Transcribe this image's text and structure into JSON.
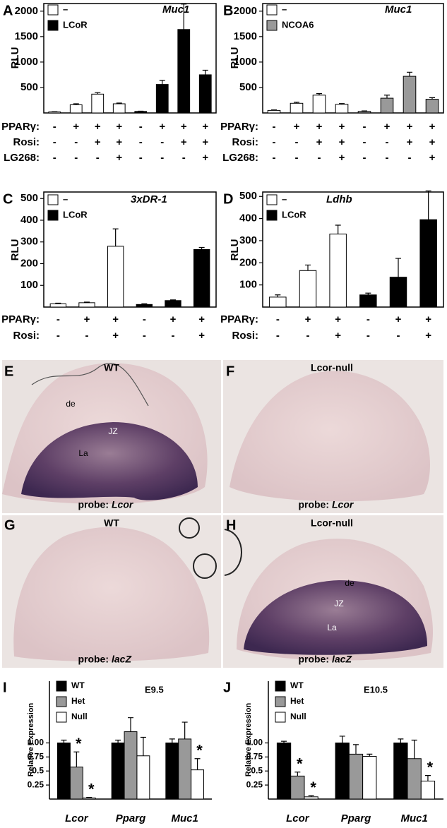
{
  "chart_data": [
    {
      "type": "bar",
      "panel": "A",
      "ylabel": "RLU",
      "annotation": "Muc1",
      "ylim": [
        0,
        2150
      ],
      "yticks": [
        500,
        1000,
        1500,
        2000
      ],
      "series": [
        {
          "name": "–",
          "color": "#ffffff",
          "values": [
            20,
            160,
            370,
            180,
            null,
            null,
            null,
            null
          ],
          "errors": [
            5,
            20,
            30,
            15,
            null,
            null,
            null,
            null
          ]
        },
        {
          "name": "LCoR",
          "color": "#000000",
          "values": [
            null,
            null,
            null,
            null,
            30,
            560,
            1640,
            750
          ],
          "errors": [
            null,
            null,
            null,
            null,
            5,
            80,
            500,
            90
          ]
        }
      ],
      "conditions": [
        {
          "label": "PPARγ:",
          "values": [
            "-",
            "+",
            "+",
            "+",
            "-",
            "+",
            "+",
            "+"
          ]
        },
        {
          "label": "Rosi:",
          "values": [
            "-",
            "-",
            "+",
            "+",
            "-",
            "-",
            "+",
            "+"
          ]
        },
        {
          "label": "LG268:",
          "values": [
            "-",
            "-",
            "-",
            "+",
            "-",
            "-",
            "-",
            "+"
          ]
        }
      ]
    },
    {
      "type": "bar",
      "panel": "B",
      "ylabel": "RLU",
      "annotation": "Muc1",
      "ylim": [
        0,
        2150
      ],
      "yticks": [
        500,
        1000,
        1500,
        2000
      ],
      "series": [
        {
          "name": "–",
          "color": "#ffffff",
          "values": [
            50,
            190,
            350,
            170,
            null,
            null,
            null,
            null
          ],
          "errors": [
            10,
            20,
            30,
            15,
            null,
            null,
            null,
            null
          ]
        },
        {
          "name": "NCOA6",
          "color": "#999999",
          "values": [
            null,
            null,
            null,
            null,
            30,
            290,
            720,
            270
          ],
          "errors": [
            null,
            null,
            null,
            null,
            10,
            60,
            80,
            30
          ]
        }
      ],
      "conditions": [
        {
          "label": "PPARγ:",
          "values": [
            "-",
            "+",
            "+",
            "+",
            "-",
            "+",
            "+",
            "+"
          ]
        },
        {
          "label": "Rosi:",
          "values": [
            "-",
            "-",
            "+",
            "+",
            "-",
            "-",
            "+",
            "+"
          ]
        },
        {
          "label": "LG268:",
          "values": [
            "-",
            "-",
            "-",
            "+",
            "-",
            "-",
            "-",
            "+"
          ]
        }
      ]
    },
    {
      "type": "bar",
      "panel": "C",
      "ylabel": "RLU",
      "annotation": "3xDR-1",
      "ylim": [
        0,
        530
      ],
      "yticks": [
        100,
        200,
        300,
        400,
        500
      ],
      "series": [
        {
          "name": "–",
          "color": "#ffffff",
          "values": [
            15,
            20,
            280,
            null,
            null,
            null
          ],
          "errors": [
            3,
            3,
            80,
            null,
            null,
            null
          ]
        },
        {
          "name": "LCoR",
          "color": "#000000",
          "values": [
            null,
            null,
            null,
            12,
            30,
            265
          ],
          "errors": [
            null,
            null,
            null,
            3,
            3,
            10
          ]
        }
      ],
      "conditions": [
        {
          "label": "PPARγ:",
          "values": [
            "-",
            "+",
            "+",
            "-",
            "+",
            "+"
          ]
        },
        {
          "label": "Rosi:",
          "values": [
            "-",
            "-",
            "+",
            "-",
            "-",
            "+"
          ]
        }
      ]
    },
    {
      "type": "bar",
      "panel": "D",
      "ylabel": "RLU",
      "annotation": "Ldhb",
      "ylim": [
        0,
        520
      ],
      "yticks": [
        100,
        200,
        300,
        400,
        500
      ],
      "series": [
        {
          "name": "–",
          "color": "#ffffff",
          "values": [
            45,
            165,
            330,
            null,
            null,
            null
          ],
          "errors": [
            10,
            25,
            40,
            null,
            null,
            null
          ]
        },
        {
          "name": "LCoR",
          "color": "#000000",
          "values": [
            null,
            null,
            null,
            55,
            135,
            395
          ],
          "errors": [
            null,
            null,
            null,
            8,
            85,
            130
          ]
        }
      ],
      "conditions": [
        {
          "label": "PPARγ:",
          "values": [
            "-",
            "+",
            "+",
            "-",
            "+",
            "+"
          ]
        },
        {
          "label": "Rosi:",
          "values": [
            "-",
            "-",
            "+",
            "-",
            "-",
            "+"
          ]
        }
      ]
    },
    {
      "type": "grouped-bar",
      "panel": "I",
      "ylabel": "Relative Expression",
      "annotation": "E9.5",
      "ylim": [
        0,
        2.1
      ],
      "yticks": [
        0.25,
        0.5,
        0.75,
        {
          "value": 1,
          "label": "1.00"
        }
      ],
      "categories": [
        "Lcor",
        "Pparg",
        "Muc1"
      ],
      "series": [
        {
          "name": "WT",
          "color": "#000000",
          "values": [
            1,
            1,
            1
          ],
          "errors": [
            0.05,
            0.05,
            0.07
          ]
        },
        {
          "name": "Het",
          "color": "#999999",
          "values": [
            0.57,
            1.2,
            1.07
          ],
          "errors": [
            0.27,
            0.25,
            0.3
          ]
        },
        {
          "name": "Null",
          "color": "#ffffff",
          "values": [
            0.02,
            0.77,
            0.52
          ],
          "errors": [
            0.01,
            0.33,
            0.2
          ]
        }
      ],
      "significance": [
        {
          "label": "*",
          "series": 1,
          "category": 0
        },
        {
          "label": "*",
          "series": 2,
          "category": 0
        },
        {
          "label": "*",
          "series": 2,
          "category": 2
        }
      ]
    },
    {
      "type": "grouped-bar",
      "panel": "J",
      "ylabel": "Relative Expression",
      "annotation": "E10.5",
      "ylim": [
        0,
        2.1
      ],
      "yticks": [
        0.25,
        0.5,
        0.75,
        {
          "value": 1,
          "label": "1.00"
        }
      ],
      "categories": [
        "Lcor",
        "Pparg",
        "Muc1"
      ],
      "series": [
        {
          "name": "WT",
          "color": "#000000",
          "values": [
            1,
            1,
            1
          ],
          "errors": [
            0.03,
            0.12,
            0.07
          ]
        },
        {
          "name": "Het",
          "color": "#999999",
          "values": [
            0.41,
            0.8,
            0.72
          ],
          "errors": [
            0.07,
            0.17,
            0.33
          ]
        },
        {
          "name": "Null",
          "color": "#ffffff",
          "values": [
            0.04,
            0.76,
            0.32
          ],
          "errors": [
            0.02,
            0.04,
            0.1
          ]
        }
      ],
      "significance": [
        {
          "label": "*",
          "series": 1,
          "category": 0
        },
        {
          "label": "*",
          "series": 2,
          "category": 0
        },
        {
          "label": "*",
          "series": 2,
          "category": 2
        }
      ]
    }
  ],
  "image_panels": [
    {
      "letter": "E",
      "title": "WT",
      "probe_label": "probe:",
      "probe": "Lcor",
      "labels": [
        "de",
        "JZ",
        "La"
      ]
    },
    {
      "letter": "F",
      "title": "Lcor-null",
      "probe_label": "probe:",
      "probe": "Lcor"
    },
    {
      "letter": "G",
      "title": "WT",
      "probe_label": "probe:",
      "probe": "lacZ"
    },
    {
      "letter": "H",
      "title": "Lcor-null",
      "probe_label": "probe:",
      "probe": "lacZ",
      "labels": [
        "de",
        "JZ",
        "La"
      ]
    }
  ]
}
